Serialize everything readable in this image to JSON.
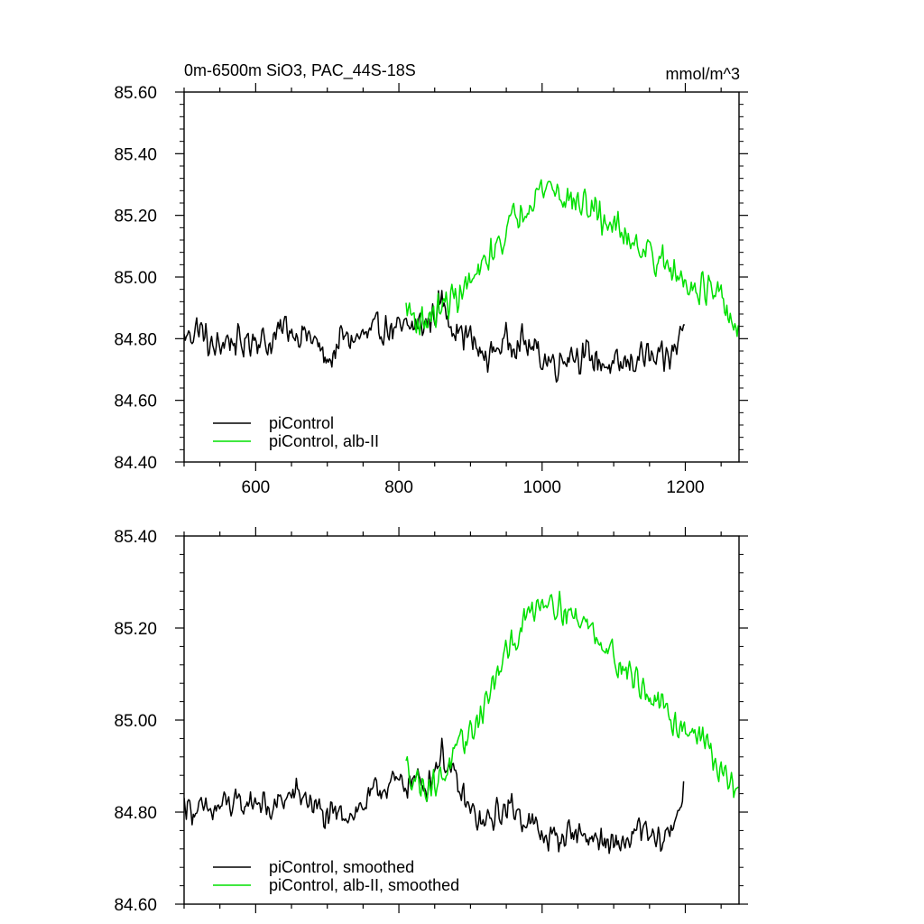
{
  "header": {
    "title": "0m-6500m SiO3, PAC_44S-18S",
    "units": "mmol/m^3"
  },
  "chart_data": [
    {
      "type": "line",
      "xlim": [
        500,
        1275
      ],
      "ylim": [
        84.4,
        85.6
      ],
      "x_ticks": [
        600,
        800,
        1000,
        1200
      ],
      "x_tick_labels": [
        "600",
        "800",
        "1000",
        "1200"
      ],
      "y_ticks": [
        84.4,
        84.6,
        84.8,
        85.0,
        85.2,
        85.4,
        85.6
      ],
      "y_tick_labels": [
        "84.40",
        "84.60",
        "84.80",
        "85.00",
        "85.20",
        "85.40",
        "85.60"
      ],
      "grid": false,
      "legend_position": "bottom-left",
      "series": [
        {
          "name": "piControl",
          "color": "#000000",
          "points": [
            [
              500,
              84.8
            ],
            [
              520,
              84.84
            ],
            [
              540,
              84.76
            ],
            [
              560,
              84.8
            ],
            [
              580,
              84.78
            ],
            [
              600,
              84.81
            ],
            [
              620,
              84.78
            ],
            [
              640,
              84.84
            ],
            [
              660,
              84.82
            ],
            [
              680,
              84.8
            ],
            [
              700,
              84.72
            ],
            [
              720,
              84.8
            ],
            [
              740,
              84.8
            ],
            [
              760,
              84.81
            ],
            [
              780,
              84.84
            ],
            [
              800,
              84.82
            ],
            [
              820,
              84.84
            ],
            [
              840,
              84.85
            ],
            [
              860,
              84.92
            ],
            [
              880,
              84.83
            ],
            [
              900,
              84.8
            ],
            [
              920,
              84.73
            ],
            [
              940,
              84.78
            ],
            [
              960,
              84.8
            ],
            [
              980,
              84.78
            ],
            [
              1000,
              84.74
            ],
            [
              1020,
              84.72
            ],
            [
              1040,
              84.76
            ],
            [
              1060,
              84.74
            ],
            [
              1080,
              84.73
            ],
            [
              1100,
              84.7
            ],
            [
              1120,
              84.72
            ],
            [
              1140,
              84.75
            ],
            [
              1160,
              84.72
            ],
            [
              1180,
              84.74
            ],
            [
              1200,
              84.85
            ]
          ],
          "noise": 0.065
        },
        {
          "name": "piControl, alb-II",
          "color": "#00e000",
          "points": [
            [
              810,
              84.9
            ],
            [
              830,
              84.85
            ],
            [
              850,
              84.88
            ],
            [
              870,
              84.92
            ],
            [
              890,
              84.96
            ],
            [
              910,
              85.0
            ],
            [
              930,
              85.08
            ],
            [
              950,
              85.15
            ],
            [
              970,
              85.22
            ],
            [
              990,
              85.27
            ],
            [
              1010,
              85.3
            ],
            [
              1030,
              85.26
            ],
            [
              1050,
              85.24
            ],
            [
              1070,
              85.22
            ],
            [
              1090,
              85.18
            ],
            [
              1110,
              85.15
            ],
            [
              1130,
              85.12
            ],
            [
              1150,
              85.08
            ],
            [
              1170,
              85.04
            ],
            [
              1190,
              85.0
            ],
            [
              1210,
              84.98
            ],
            [
              1230,
              84.96
            ],
            [
              1250,
              84.92
            ],
            [
              1275,
              84.82
            ]
          ],
          "noise": 0.065
        }
      ]
    },
    {
      "type": "line",
      "xlim": [
        500,
        1275
      ],
      "ylim": [
        84.6,
        85.4
      ],
      "x_ticks": [
        600,
        800,
        1000,
        1200
      ],
      "x_tick_labels": [],
      "y_ticks": [
        84.6,
        84.8,
        85.0,
        85.2,
        85.4
      ],
      "y_tick_labels": [
        "84.60",
        "84.80",
        "85.00",
        "85.20",
        "85.40"
      ],
      "grid": false,
      "legend_position": "bottom-left",
      "series": [
        {
          "name": "piControl, smoothed",
          "color": "#000000",
          "points": [
            [
              500,
              84.82
            ],
            [
              520,
              84.8
            ],
            [
              540,
              84.8
            ],
            [
              560,
              84.82
            ],
            [
              580,
              84.81
            ],
            [
              600,
              84.83
            ],
            [
              620,
              84.8
            ],
            [
              640,
              84.83
            ],
            [
              660,
              84.84
            ],
            [
              680,
              84.82
            ],
            [
              700,
              84.78
            ],
            [
              720,
              84.8
            ],
            [
              740,
              84.8
            ],
            [
              760,
              84.83
            ],
            [
              780,
              84.86
            ],
            [
              800,
              84.86
            ],
            [
              820,
              84.87
            ],
            [
              840,
              84.86
            ],
            [
              860,
              84.93
            ],
            [
              880,
              84.86
            ],
            [
              900,
              84.8
            ],
            [
              920,
              84.77
            ],
            [
              940,
              84.8
            ],
            [
              960,
              84.81
            ],
            [
              980,
              84.78
            ],
            [
              1000,
              84.75
            ],
            [
              1020,
              84.74
            ],
            [
              1040,
              84.76
            ],
            [
              1060,
              84.75
            ],
            [
              1080,
              84.74
            ],
            [
              1100,
              84.72
            ],
            [
              1120,
              84.74
            ],
            [
              1140,
              84.76
            ],
            [
              1160,
              84.73
            ],
            [
              1180,
              84.76
            ],
            [
              1198,
              84.85
            ]
          ],
          "noise": 0.04
        },
        {
          "name": "piControl, alb-II, smoothed",
          "color": "#00e000",
          "points": [
            [
              810,
              84.9
            ],
            [
              830,
              84.86
            ],
            [
              850,
              84.86
            ],
            [
              870,
              84.9
            ],
            [
              890,
              84.95
            ],
            [
              910,
              85.0
            ],
            [
              930,
              85.07
            ],
            [
              950,
              85.14
            ],
            [
              970,
              85.2
            ],
            [
              990,
              85.25
            ],
            [
              1010,
              85.27
            ],
            [
              1030,
              85.24
            ],
            [
              1050,
              85.22
            ],
            [
              1070,
              85.2
            ],
            [
              1090,
              85.16
            ],
            [
              1110,
              85.12
            ],
            [
              1130,
              85.09
            ],
            [
              1150,
              85.05
            ],
            [
              1170,
              85.02
            ],
            [
              1190,
              84.99
            ],
            [
              1210,
              84.98
            ],
            [
              1230,
              84.95
            ],
            [
              1250,
              84.88
            ],
            [
              1275,
              84.85
            ]
          ],
          "noise": 0.04
        }
      ]
    }
  ]
}
